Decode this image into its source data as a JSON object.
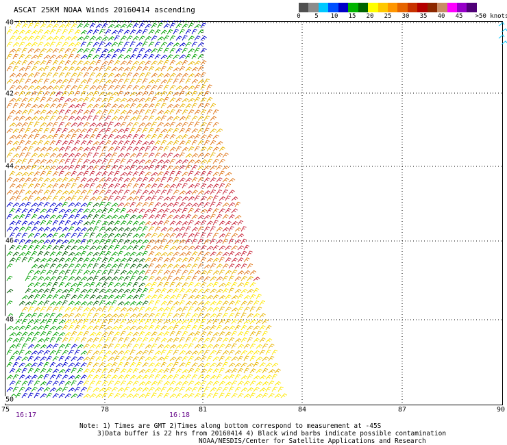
{
  "title": "ASCAT 25KM NOAA Winds 20160414 ascending",
  "legend": {
    "colors": [
      "#505050",
      "#8c8c8c",
      "#00c8ff",
      "#0050ff",
      "#0000c8",
      "#00b400",
      "#006400",
      "#ffff00",
      "#ffc800",
      "#ff9600",
      "#e66400",
      "#c83200",
      "#b40000",
      "#8c2800",
      "#c88c64",
      "#ff00ff",
      "#9600c8",
      "#500078"
    ],
    "labels": [
      "0",
      "5",
      "10",
      "15",
      "20",
      "25",
      "30",
      "35",
      "40",
      "45",
      ">50 knots"
    ]
  },
  "axes": {
    "x_labels": [
      "75",
      "78",
      "81",
      "84",
      "87",
      "90"
    ],
    "y_labels": [
      "40",
      "42",
      "44",
      "46",
      "48",
      "50"
    ]
  },
  "times": [
    "16:17",
    "16:18"
  ],
  "notes": [
    "Note: 1) Times are GMT 2)Times along bottom correspond to measurement at -45S",
    "3)Data buffer is 22 hrs from 20160414 4) Black wind barbs indicate possible contamination"
  ],
  "credit": "NOAA/NESDIS/Center for Satellite Applications and Research",
  "wind_colors": {
    "gold": "#e8b400",
    "yellow": "#ffe800",
    "orange": "#e0781c",
    "red": "#c8283c",
    "green": "#00a000",
    "darkgreen": "#005a00",
    "blue": "#0000cc",
    "cyan": "#00c8ff"
  }
}
